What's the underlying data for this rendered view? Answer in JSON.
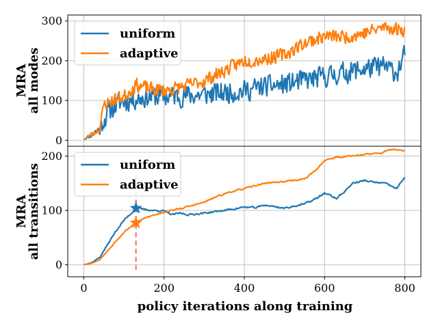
{
  "chart_data": [
    {
      "type": "line",
      "panel": "top",
      "ylabel_line1": "MRA",
      "ylabel_line2": "all modes",
      "xlim": [
        -40,
        840
      ],
      "ylim": [
        -15,
        315
      ],
      "yticks": [
        0,
        100,
        200,
        300
      ],
      "grid": true,
      "legend_position": "top-left",
      "series": [
        {
          "name": "uniform",
          "color": "#1f77b4",
          "anchors": [
            [
              0,
              2
            ],
            [
              20,
              15
            ],
            [
              40,
              28
            ],
            [
              55,
              60
            ],
            [
              70,
              80
            ],
            [
              90,
              95
            ],
            [
              110,
              100
            ],
            [
              130,
              105
            ],
            [
              160,
              110
            ],
            [
              200,
              110
            ],
            [
              250,
              112
            ],
            [
              300,
              115
            ],
            [
              350,
              120
            ],
            [
              400,
              125
            ],
            [
              450,
              135
            ],
            [
              500,
              140
            ],
            [
              550,
              150
            ],
            [
              600,
              160
            ],
            [
              650,
              170
            ],
            [
              700,
              180
            ],
            [
              750,
              185
            ],
            [
              780,
              170
            ],
            [
              800,
              215
            ]
          ],
          "noise": 28,
          "seed": 11
        },
        {
          "name": "adaptive",
          "color": "#ff7f0e",
          "anchors": [
            [
              0,
              2
            ],
            [
              20,
              15
            ],
            [
              40,
              30
            ],
            [
              50,
              90
            ],
            [
              70,
              100
            ],
            [
              100,
              110
            ],
            [
              130,
              140
            ],
            [
              160,
              130
            ],
            [
              200,
              125
            ],
            [
              250,
              135
            ],
            [
              300,
              150
            ],
            [
              350,
              175
            ],
            [
              400,
              200
            ],
            [
              450,
              205
            ],
            [
              500,
              215
            ],
            [
              550,
              245
            ],
            [
              600,
              262
            ],
            [
              650,
              260
            ],
            [
              700,
              270
            ],
            [
              750,
              285
            ],
            [
              780,
              280
            ],
            [
              800,
              278
            ]
          ],
          "noise": 18,
          "seed": 23
        }
      ]
    },
    {
      "type": "line",
      "panel": "bottom",
      "xlabel": "policy iterations along training",
      "ylabel_line1": "MRA",
      "ylabel_line2": "all transitions",
      "xlim": [
        -40,
        840
      ],
      "ylim": [
        -22,
        218
      ],
      "xticks": [
        0,
        200,
        400,
        600,
        800
      ],
      "yticks": [
        0,
        100,
        200
      ],
      "grid": true,
      "legend_position": "top-left",
      "series": [
        {
          "name": "uniform",
          "color": "#1f77b4",
          "anchors": [
            [
              0,
              0
            ],
            [
              20,
              4
            ],
            [
              40,
              14
            ],
            [
              60,
              38
            ],
            [
              80,
              62
            ],
            [
              100,
              82
            ],
            [
              120,
              96
            ],
            [
              130,
              104
            ],
            [
              150,
              102
            ],
            [
              170,
              100
            ],
            [
              200,
              99
            ],
            [
              220,
              92
            ],
            [
              240,
              95
            ],
            [
              260,
              92
            ],
            [
              300,
              95
            ],
            [
              350,
              100
            ],
            [
              400,
              106
            ],
            [
              430,
              105
            ],
            [
              450,
              110
            ],
            [
              500,
              104
            ],
            [
              550,
              112
            ],
            [
              580,
              122
            ],
            [
              600,
              132
            ],
            [
              630,
              122
            ],
            [
              650,
              135
            ],
            [
              670,
              150
            ],
            [
              700,
              155
            ],
            [
              720,
              152
            ],
            [
              750,
              150
            ],
            [
              780,
              140
            ],
            [
              800,
              162
            ]
          ],
          "noise": 2.5,
          "seed": 37
        },
        {
          "name": "adaptive",
          "color": "#ff7f0e",
          "anchors": [
            [
              0,
              0
            ],
            [
              20,
              3
            ],
            [
              40,
              10
            ],
            [
              60,
              26
            ],
            [
              80,
              44
            ],
            [
              100,
              60
            ],
            [
              120,
              72
            ],
            [
              130,
              78
            ],
            [
              160,
              88
            ],
            [
              200,
              97
            ],
            [
              250,
              105
            ],
            [
              300,
              115
            ],
            [
              330,
              125
            ],
            [
              360,
              133
            ],
            [
              400,
              140
            ],
            [
              450,
              150
            ],
            [
              480,
              152
            ],
            [
              500,
              153
            ],
            [
              550,
              158
            ],
            [
              580,
              175
            ],
            [
              600,
              192
            ],
            [
              630,
              198
            ],
            [
              650,
              199
            ],
            [
              700,
              203
            ],
            [
              740,
              205
            ],
            [
              760,
              212
            ],
            [
              800,
              210
            ]
          ],
          "noise": 2,
          "seed": 53
        }
      ],
      "marker_line_x": 130,
      "markers": [
        {
          "series": "uniform",
          "x": 130,
          "y": 104,
          "color": "#1f77b4"
        },
        {
          "series": "adaptive",
          "x": 130,
          "y": 77,
          "color": "#ff7f0e"
        }
      ],
      "marker_line_color": "#f08080"
    }
  ]
}
